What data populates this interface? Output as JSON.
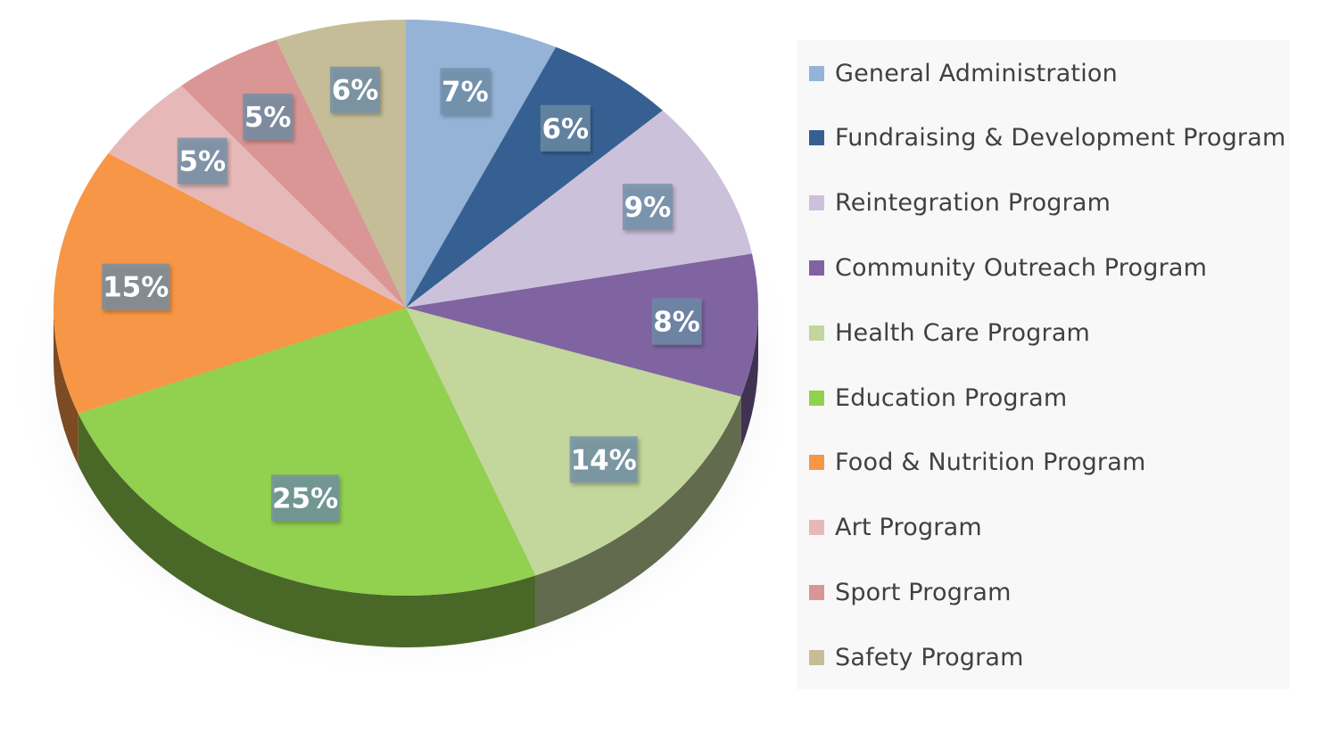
{
  "chart_data": {
    "type": "pie",
    "style": "3d",
    "legend_position": "right",
    "categories": [
      "General Administration",
      "Fundraising & Development Program",
      "Reintegration Program",
      "Community Outreach Program",
      "Health Care Program",
      "Education Program",
      "Food & Nutrition Program",
      "Art Program",
      "Sport Program",
      "Safety Program"
    ],
    "values": [
      7,
      6,
      9,
      8,
      14,
      25,
      15,
      5,
      5,
      6
    ],
    "data_labels": [
      "7%",
      "6%",
      "9%",
      "8%",
      "14%",
      "25%",
      "15%",
      "5%",
      "5%",
      "6%"
    ],
    "colors": [
      "#95b3d7",
      "#376092",
      "#ccc1da",
      "#8064a2",
      "#c3d69b",
      "#92d050",
      "#f79646",
      "#e6b9b8",
      "#d99694",
      "#c4bd97"
    ],
    "label_box_color": "#6f8fa8",
    "title": "",
    "xlabel": "",
    "ylabel": ""
  }
}
